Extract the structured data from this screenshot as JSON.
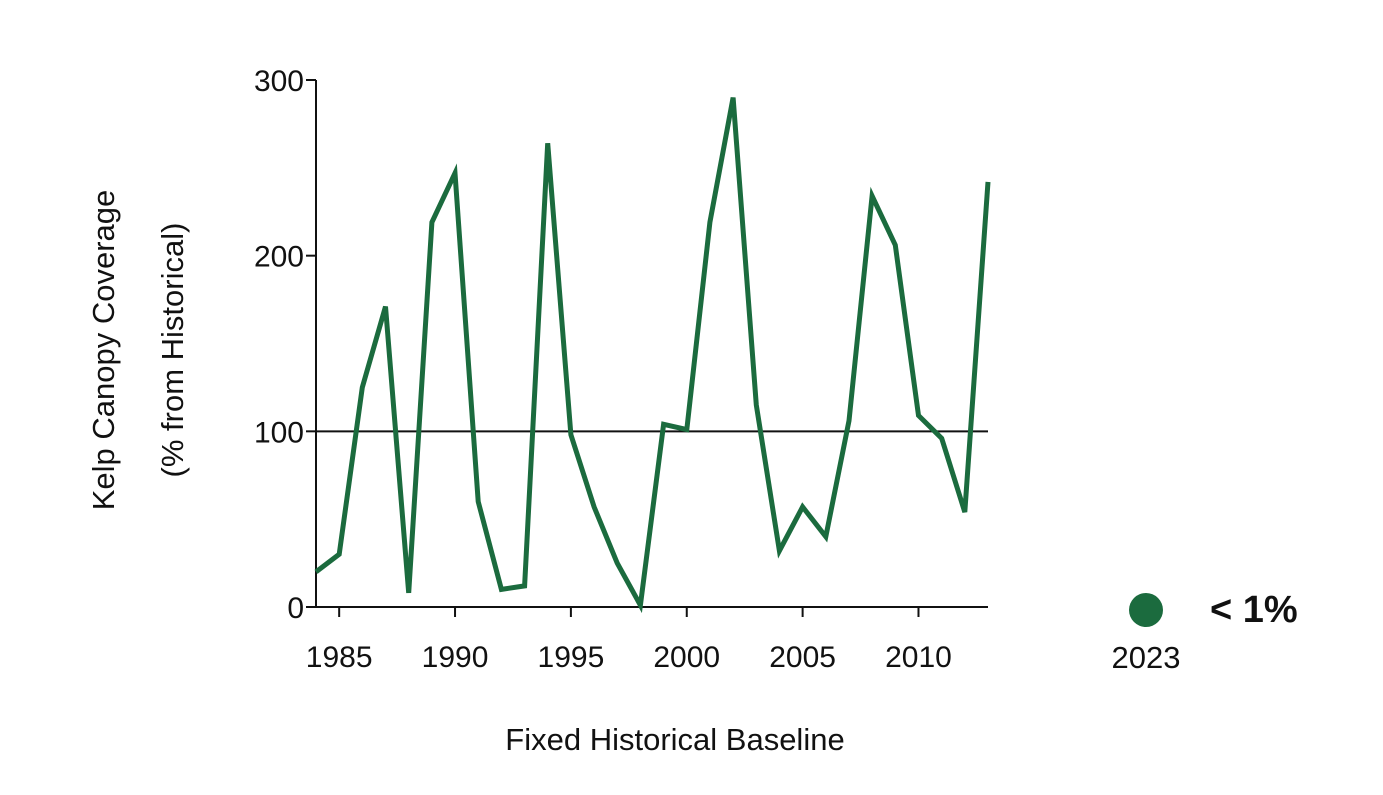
{
  "chart_data": {
    "type": "line",
    "xlabel": "Fixed Historical Baseline",
    "ylabel_line1": "Kelp Canopy Coverage",
    "ylabel_line2": "(% from Historical)",
    "xlim": [
      1984,
      2013
    ],
    "ylim": [
      0,
      300
    ],
    "x_ticks": [
      1985,
      1990,
      1995,
      2000,
      2005,
      2010
    ],
    "y_ticks": [
      0,
      100,
      200,
      300
    ],
    "reference_line": 100,
    "grid": false,
    "legend": "none",
    "colors": {
      "series": "#1b6b3e",
      "reference": "#111111",
      "axis": "#111111"
    },
    "series": [
      {
        "x": [
          1984,
          1985,
          1986,
          1987,
          1988,
          1989,
          1990,
          1991,
          1992,
          1993,
          1994,
          1995,
          1996,
          1997,
          1998,
          1999,
          2000,
          2001,
          2002,
          2003,
          2004,
          2005,
          2006,
          2007,
          2008,
          2009,
          2010,
          2011,
          2012,
          2013
        ],
        "values": [
          20,
          30,
          125,
          171,
          8,
          219,
          247,
          60,
          10,
          12,
          264,
          98,
          57,
          25,
          1,
          104,
          101,
          219,
          290,
          115,
          32,
          57,
          40,
          106,
          234,
          206,
          109,
          96,
          54,
          242
        ]
      }
    ],
    "highlight": {
      "label": "2023",
      "value_text": "< 1%",
      "color": "#1b6b3e"
    }
  }
}
